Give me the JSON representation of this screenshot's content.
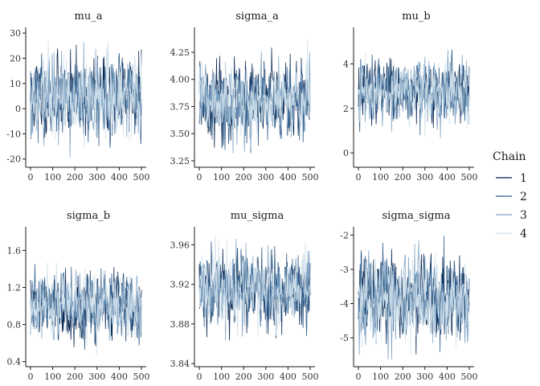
{
  "legend": {
    "title": "Chain",
    "items": [
      {
        "label": "1",
        "color": "#011f4b"
      },
      {
        "label": "2",
        "color": "#2b5a87"
      },
      {
        "label": "3",
        "color": "#7fa3c4"
      },
      {
        "label": "4",
        "color": "#d1e1ec"
      }
    ]
  },
  "chart_data": [
    {
      "type": "line",
      "title": "mu_a",
      "xlim": [
        0,
        500
      ],
      "ylim": [
        -22,
        31
      ],
      "x_ticks": [
        0,
        100,
        200,
        300,
        400,
        500
      ],
      "y_ticks": [
        -20,
        -10,
        0,
        10,
        20,
        30
      ],
      "center": 5,
      "spread": 7.5,
      "seed": 11
    },
    {
      "type": "line",
      "title": "sigma_a",
      "xlim": [
        0,
        500
      ],
      "ylim": [
        3.22,
        4.45
      ],
      "x_ticks": [
        0,
        100,
        200,
        300,
        400,
        500
      ],
      "y_ticks": [
        3.25,
        3.5,
        3.75,
        4.0,
        4.25
      ],
      "center": 3.8,
      "spread": 0.16,
      "seed": 23
    },
    {
      "type": "line",
      "title": "mu_b",
      "xlim": [
        0,
        500
      ],
      "ylim": [
        -0.5,
        5.5
      ],
      "x_ticks": [
        0,
        100,
        200,
        300,
        400,
        500
      ],
      "y_ticks": [
        0,
        2,
        4
      ],
      "center": 2.8,
      "spread": 0.65,
      "seed": 37
    },
    {
      "type": "line",
      "title": "sigma_b",
      "xlim": [
        0,
        500
      ],
      "ylim": [
        0.38,
        1.82
      ],
      "x_ticks": [
        0,
        100,
        200,
        300,
        400,
        500
      ],
      "y_ticks": [
        0.4,
        0.8,
        1.2,
        1.6
      ],
      "center": 1.0,
      "spread": 0.17,
      "seed": 41
    },
    {
      "type": "line",
      "title": "mu_sigma",
      "xlim": [
        0,
        500
      ],
      "ylim": [
        3.84,
        3.975
      ],
      "x_ticks": [
        0,
        100,
        200,
        300,
        400,
        500
      ],
      "y_ticks": [
        3.84,
        3.88,
        3.92,
        3.96
      ],
      "center": 3.915,
      "spread": 0.018,
      "seed": 53
    },
    {
      "type": "line",
      "title": "sigma_sigma",
      "xlim": [
        0,
        500
      ],
      "ylim": [
        -5.75,
        -1.85
      ],
      "x_ticks": [
        0,
        100,
        200,
        300,
        400,
        500
      ],
      "y_ticks": [
        -5,
        -4,
        -3,
        -2
      ],
      "center": -3.9,
      "spread": 0.55,
      "seed": 67
    }
  ]
}
